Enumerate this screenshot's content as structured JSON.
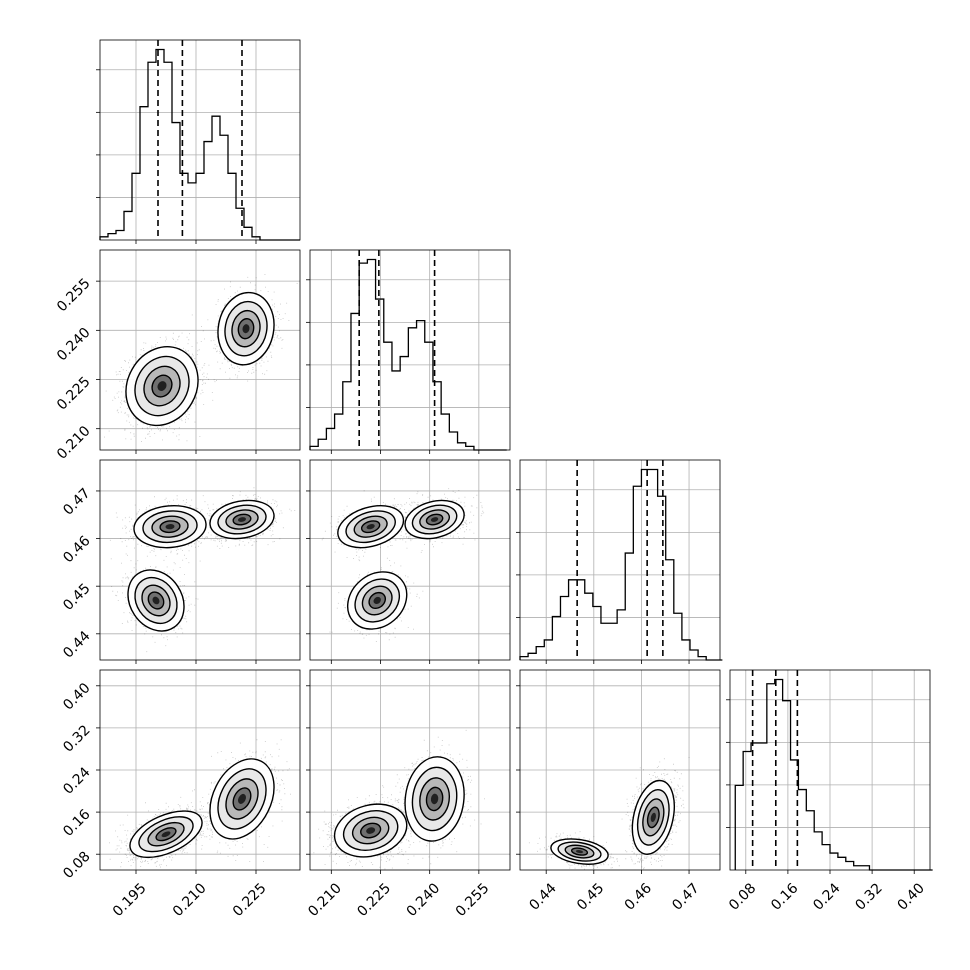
{
  "chart_data": {
    "type": "corner",
    "parameters": [
      {
        "range": [
          0.186,
          0.236
        ],
        "ticks": [
          0.195,
          0.21,
          0.225
        ],
        "tick_labels": [
          "0.195",
          "0.210",
          "0.225"
        ],
        "quantiles": [
          0.2005,
          0.2066,
          0.2215
        ]
      },
      {
        "range": [
          0.2035,
          0.2645
        ],
        "ticks": [
          0.21,
          0.225,
          0.24,
          0.255
        ],
        "tick_labels": [
          "0.210",
          "0.225",
          "0.240",
          "0.255"
        ],
        "quantiles": [
          0.2185,
          0.2245,
          0.2415
        ]
      },
      {
        "range": [
          0.4345,
          0.4765
        ],
        "ticks": [
          0.44,
          0.45,
          0.46,
          0.47
        ],
        "tick_labels": [
          "0.44",
          "0.45",
          "0.46",
          "0.47"
        ],
        "quantiles": [
          0.4465,
          0.4612,
          0.4645
        ]
      },
      {
        "range": [
          0.05,
          0.43
        ],
        "ticks": [
          0.08,
          0.16,
          0.24,
          0.32,
          0.4
        ],
        "tick_labels": [
          "0.08",
          "0.16",
          "0.24",
          "0.32",
          "0.40"
        ],
        "quantiles": [
          0.093,
          0.137,
          0.178
        ]
      }
    ],
    "histograms": [
      {
        "bins": [
          0.186,
          0.188,
          0.19,
          0.192,
          0.194,
          0.196,
          0.198,
          0.2,
          0.202,
          0.204,
          0.206,
          0.208,
          0.21,
          0.212,
          0.214,
          0.216,
          0.218,
          0.22,
          0.222,
          0.224,
          0.226,
          0.228,
          0.23,
          0.232,
          0.234
        ],
        "counts": [
          1,
          2,
          3,
          9,
          21,
          42,
          56,
          60,
          56,
          37,
          21,
          18,
          21,
          31,
          39,
          33,
          21,
          10,
          4,
          1,
          0,
          0,
          0,
          0,
          0
        ]
      },
      {
        "bins": [
          0.2035,
          0.206,
          0.2085,
          0.211,
          0.2135,
          0.216,
          0.2185,
          0.221,
          0.2235,
          0.226,
          0.2285,
          0.231,
          0.2335,
          0.236,
          0.2385,
          0.241,
          0.2435,
          0.246,
          0.2485,
          0.251,
          0.2535,
          0.256,
          0.2585,
          0.261
        ],
        "counts": [
          1,
          3,
          6,
          10,
          19,
          38,
          52,
          53,
          42,
          30,
          22,
          26,
          34,
          36,
          30,
          19,
          10,
          5,
          2,
          1,
          0,
          0,
          0,
          0
        ]
      },
      {
        "bins": [
          0.4345,
          0.4362,
          0.4379,
          0.4396,
          0.4413,
          0.443,
          0.4447,
          0.4464,
          0.4481,
          0.4498,
          0.4515,
          0.4532,
          0.4549,
          0.4566,
          0.4583,
          0.46,
          0.4617,
          0.4634,
          0.4651,
          0.4668,
          0.4685,
          0.4702,
          0.4719,
          0.4736,
          0.4753
        ],
        "counts": [
          1,
          2,
          4,
          6,
          13,
          19,
          24,
          24,
          20,
          16,
          11,
          11,
          15,
          32,
          52,
          57,
          57,
          49,
          30,
          14,
          6,
          3,
          1,
          0,
          0
        ]
      },
      {
        "bins": [
          0.06,
          0.075,
          0.09,
          0.105,
          0.12,
          0.135,
          0.15,
          0.165,
          0.18,
          0.195,
          0.21,
          0.225,
          0.24,
          0.255,
          0.27,
          0.285,
          0.3,
          0.315,
          0.33,
          0.345,
          0.36,
          0.375,
          0.39,
          0.405,
          0.42
        ],
        "counts": [
          20,
          28,
          30,
          30,
          44,
          45,
          40,
          26,
          19,
          14,
          9,
          6,
          4,
          3,
          2,
          1,
          1,
          0,
          0,
          0,
          0,
          0,
          0,
          0,
          0
        ]
      }
    ],
    "scatter_clusters": {
      "0-1": [
        {
          "center": [
            0.2015,
            0.223
          ],
          "sd": [
            0.0045,
            0.006
          ],
          "rho": 0.15,
          "n": 1700
        },
        {
          "center": [
            0.2225,
            0.2405
          ],
          "sd": [
            0.0035,
            0.0055
          ],
          "rho": 0.1,
          "n": 1000
        }
      ],
      "0-2": [
        {
          "center": [
            0.2035,
            0.4625
          ],
          "sd": [
            0.0045,
            0.0022
          ],
          "rho": 0.1,
          "n": 900
        },
        {
          "center": [
            0.2215,
            0.464
          ],
          "sd": [
            0.004,
            0.002
          ],
          "rho": 0.2,
          "n": 1000
        },
        {
          "center": [
            0.2,
            0.447
          ],
          "sd": [
            0.0035,
            0.0032
          ],
          "rho": -0.2,
          "n": 700
        }
      ],
      "0-3": [
        {
          "center": [
            0.2025,
            0.118
          ],
          "sd": [
            0.0045,
            0.022
          ],
          "rho": 0.5,
          "n": 1600
        },
        {
          "center": [
            0.2215,
            0.185
          ],
          "sd": [
            0.004,
            0.038
          ],
          "rho": 0.3,
          "n": 1000
        }
      ],
      "1-2": [
        {
          "center": [
            0.222,
            0.4625
          ],
          "sd": [
            0.005,
            0.0022
          ],
          "rho": 0.3,
          "n": 900
        },
        {
          "center": [
            0.2415,
            0.464
          ],
          "sd": [
            0.0045,
            0.002
          ],
          "rho": 0.25,
          "n": 1000
        },
        {
          "center": [
            0.224,
            0.447
          ],
          "sd": [
            0.0045,
            0.003
          ],
          "rho": 0.2,
          "n": 700
        }
      ],
      "1-3": [
        {
          "center": [
            0.222,
            0.125
          ],
          "sd": [
            0.0055,
            0.025
          ],
          "rho": 0.2,
          "n": 1600
        },
        {
          "center": [
            0.2415,
            0.185
          ],
          "sd": [
            0.0045,
            0.04
          ],
          "rho": 0.1,
          "n": 1000
        }
      ],
      "2-3": [
        {
          "center": [
            0.447,
            0.085
          ],
          "sd": [
            0.003,
            0.012
          ],
          "rho": -0.3,
          "n": 900
        },
        {
          "center": [
            0.4625,
            0.15
          ],
          "sd": [
            0.0022,
            0.035
          ],
          "rho": 0.3,
          "n": 1700
        }
      ]
    },
    "grid": true
  }
}
